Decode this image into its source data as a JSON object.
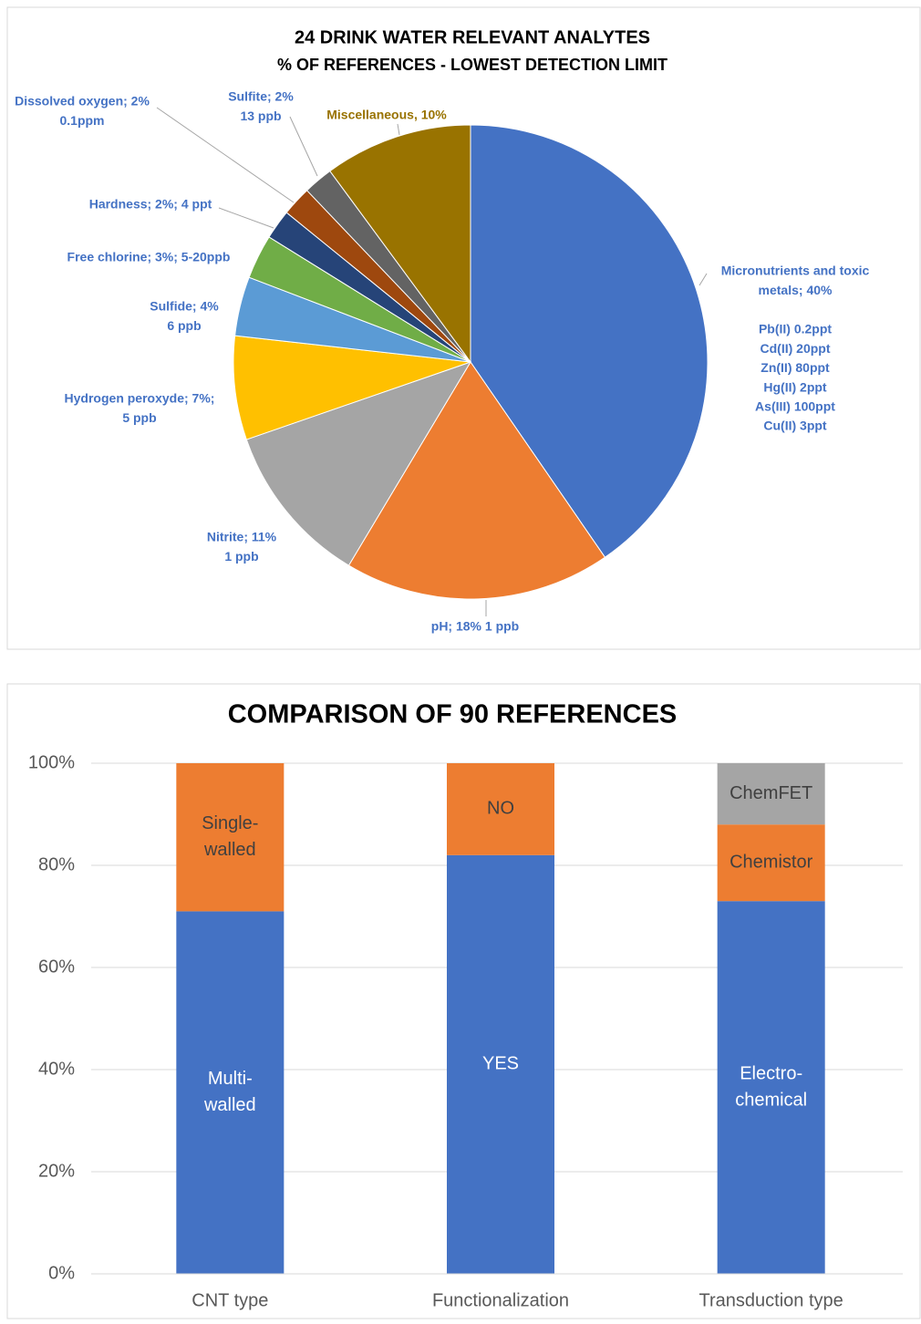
{
  "chart_data": [
    {
      "type": "pie",
      "title": "24 DRINK WATER RELEVANT ANALYTES",
      "subtitle": "% OF REFERENCES - LOWEST DETECTION LIMIT",
      "values": [
        40,
        18,
        11,
        7,
        4,
        3,
        2,
        2,
        2,
        10
      ],
      "colors": [
        "#4472c4",
        "#ed7d31",
        "#a5a5a5",
        "#ffc000",
        "#5b9bd5",
        "#70ad47",
        "#264478",
        "#9e480e",
        "#636363",
        "#997300"
      ],
      "label_colors": [
        "#4472c4",
        "#4472c4",
        "#4472c4",
        "#4472c4",
        "#4472c4",
        "#4472c4",
        "#4472c4",
        "#4472c4",
        "#4472c4",
        "#997300"
      ],
      "labels": [
        [
          "Micronutrients and toxic",
          "metals; 40%"
        ],
        [
          "pH; 18% 1 ppb"
        ],
        [
          "Nitrite; 11%",
          "1 ppb"
        ],
        [
          "Hydrogen peroxyde; 7%;",
          "5 ppb"
        ],
        [
          "Sulfide; 4%",
          "6 ppb"
        ],
        [
          "Free chlorine; 3%; 5-20ppb"
        ],
        [
          "Hardness; 2%; 4 ppt"
        ],
        [
          "Dissolved oxygen; 2%",
          "0.1ppm"
        ],
        [
          "Sulfite; 2%",
          "13 ppb"
        ],
        [
          "Miscellaneous, 10%"
        ]
      ],
      "annotations": [
        "Pb(II) 0.2ppt",
        "Cd(II) 20ppt",
        "Zn(II) 80ppt",
        "Hg(II) 2ppt",
        "As(III) 100ppt",
        "Cu(II) 3ppt"
      ]
    },
    {
      "type": "stacked_bar",
      "title": "COMPARISON OF 90 REFERENCES",
      "categories": [
        "CNT type",
        "Functionalization",
        "Transduction type"
      ],
      "series": [
        {
          "color": "#4472c4",
          "values": [
            71,
            82,
            73
          ],
          "segment_labels": [
            [
              "Multi-",
              "walled"
            ],
            [
              "YES"
            ],
            [
              "Electro-",
              "chemical"
            ]
          ],
          "label_color": "#ffffff"
        },
        {
          "color": "#ed7d31",
          "values": [
            29,
            18,
            15
          ],
          "segment_labels": [
            [
              "Single-",
              "walled"
            ],
            [
              "NO"
            ],
            [
              "Chemistor"
            ]
          ],
          "label_color": "#404040"
        },
        {
          "color": "#a5a5a5",
          "values": [
            null,
            null,
            12
          ],
          "segment_labels": [
            null,
            null,
            [
              "ChemFET"
            ]
          ],
          "label_color": "#404040"
        }
      ],
      "ylim": [
        0,
        100
      ],
      "yticks": [
        {
          "value": 0,
          "label": "0%"
        },
        {
          "value": 20,
          "label": "20%"
        },
        {
          "value": 40,
          "label": "40%"
        },
        {
          "value": 60,
          "label": "60%"
        },
        {
          "value": 80,
          "label": "80%"
        },
        {
          "value": 100,
          "label": "100%"
        }
      ],
      "grid": true
    }
  ]
}
